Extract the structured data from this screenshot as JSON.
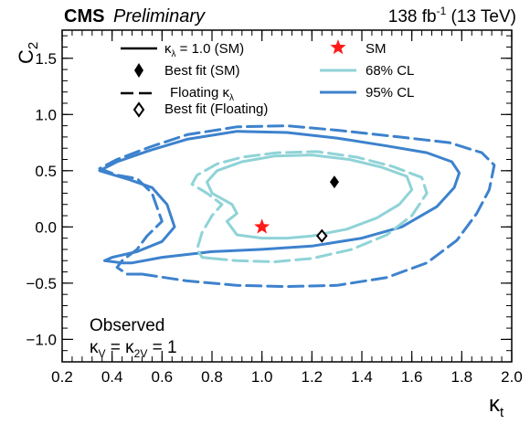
{
  "chart_data": {
    "type": "line",
    "header": {
      "experiment": "CMS",
      "status": "Preliminary",
      "lumi": "138 fb",
      "lumi_exp": "-1",
      "energy": " (13 TeV)"
    },
    "xlabel": {
      "main": "κ",
      "sub": "t"
    },
    "ylabel": {
      "main": "C",
      "sub": "2"
    },
    "xlim": [
      0.2,
      2.0
    ],
    "ylim": [
      -1.2,
      1.75
    ],
    "xticks": [
      0.2,
      0.4,
      0.6,
      0.8,
      1.0,
      1.2,
      1.4,
      1.6,
      1.8,
      2.0
    ],
    "xtick_labels": [
      "0.2",
      "0.4",
      "0.6",
      "0.8",
      "1.0",
      "1.2",
      "1.4",
      "1.6",
      "1.8",
      "2.0"
    ],
    "yticks": [
      -1.0,
      -0.5,
      0.0,
      0.5,
      1.0,
      1.5
    ],
    "ytick_labels": [
      "−1.0",
      "−0.5",
      "0.0",
      "0.5",
      "1.0",
      "1.5"
    ],
    "grid": false,
    "legend": {
      "placement": "top",
      "items": [
        {
          "label_main": "κ",
          "label_sub": "λ",
          "label_rest": " = 1.0 (SM)",
          "kind": "solid"
        },
        {
          "label": "Best fit (SM)",
          "kind": "filled-diamond"
        },
        {
          "label_pre": "Floating κ",
          "label_sub": "λ",
          "kind": "dashed"
        },
        {
          "label": "Best fit (Floating)",
          "kind": "open-diamond"
        },
        {
          "label": "SM",
          "kind": "star"
        },
        {
          "label": "68% CL",
          "kind": "cl68"
        },
        {
          "label": "95% CL",
          "kind": "cl95"
        }
      ]
    },
    "annotation": {
      "line1": "Observed",
      "line2_a": "κ",
      "line2_a_sub": "V",
      "line2_mid": " = κ",
      "line2_b_sub": "2V",
      "line2_end": " = 1"
    },
    "colors": {
      "cl68": "#8fd3d7",
      "cl95": "#3d82cd",
      "star": "#ff1a1a",
      "axis": "#000000"
    },
    "points": [
      {
        "name": "SM",
        "x": 1.0,
        "y": 0.0,
        "marker": "star"
      },
      {
        "name": "Best fit (SM)",
        "x": 1.29,
        "y": 0.4,
        "marker": "filled-diamond"
      },
      {
        "name": "Best fit (Floating)",
        "x": 1.24,
        "y": -0.08,
        "marker": "open-diamond"
      }
    ],
    "series": [
      {
        "cl": "95%",
        "style": "solid",
        "color_key": "cl95",
        "points": [
          [
            0.48,
            -0.32
          ],
          [
            0.6,
            -0.27
          ],
          [
            0.8,
            -0.22
          ],
          [
            1.0,
            -0.2
          ],
          [
            1.2,
            -0.17
          ],
          [
            1.4,
            -0.1
          ],
          [
            1.56,
            0.0
          ],
          [
            1.7,
            0.18
          ],
          [
            1.77,
            0.35
          ],
          [
            1.79,
            0.48
          ],
          [
            1.76,
            0.58
          ],
          [
            1.66,
            0.66
          ],
          [
            1.5,
            0.72
          ],
          [
            1.3,
            0.79
          ],
          [
            1.1,
            0.84
          ],
          [
            0.9,
            0.85
          ],
          [
            0.7,
            0.78
          ],
          [
            0.55,
            0.68
          ],
          [
            0.42,
            0.58
          ],
          [
            0.35,
            0.5
          ],
          [
            0.47,
            0.42
          ],
          [
            0.56,
            0.35
          ],
          [
            0.62,
            0.2
          ],
          [
            0.65,
            0.0
          ],
          [
            0.6,
            -0.13
          ],
          [
            0.5,
            -0.22
          ],
          [
            0.4,
            -0.27
          ],
          [
            0.37,
            -0.3
          ],
          [
            0.44,
            -0.32
          ],
          [
            0.48,
            -0.32
          ]
        ]
      },
      {
        "cl": "95%",
        "style": "dashed",
        "color_key": "cl95",
        "points": [
          [
            0.52,
            -0.42
          ],
          [
            0.7,
            -0.48
          ],
          [
            0.9,
            -0.52
          ],
          [
            1.1,
            -0.53
          ],
          [
            1.3,
            -0.52
          ],
          [
            1.5,
            -0.45
          ],
          [
            1.66,
            -0.32
          ],
          [
            1.78,
            -0.12
          ],
          [
            1.86,
            0.12
          ],
          [
            1.91,
            0.33
          ],
          [
            1.93,
            0.55
          ],
          [
            1.88,
            0.66
          ],
          [
            1.75,
            0.75
          ],
          [
            1.55,
            0.8
          ],
          [
            1.3,
            0.86
          ],
          [
            1.1,
            0.9
          ],
          [
            0.9,
            0.89
          ],
          [
            0.7,
            0.82
          ],
          [
            0.55,
            0.71
          ],
          [
            0.42,
            0.6
          ],
          [
            0.35,
            0.52
          ],
          [
            0.42,
            0.46
          ],
          [
            0.5,
            0.43
          ],
          [
            0.56,
            0.3
          ],
          [
            0.6,
            0.05
          ],
          [
            0.54,
            -0.08
          ],
          [
            0.5,
            -0.2
          ],
          [
            0.44,
            -0.3
          ],
          [
            0.42,
            -0.36
          ],
          [
            0.46,
            -0.42
          ],
          [
            0.52,
            -0.42
          ]
        ]
      },
      {
        "cl": "68%",
        "style": "solid",
        "color_key": "cl68",
        "points": [
          [
            0.9,
            -0.07
          ],
          [
            1.0,
            -0.1
          ],
          [
            1.1,
            -0.1
          ],
          [
            1.2,
            -0.08
          ],
          [
            1.34,
            -0.02
          ],
          [
            1.46,
            0.08
          ],
          [
            1.55,
            0.2
          ],
          [
            1.6,
            0.33
          ],
          [
            1.58,
            0.45
          ],
          [
            1.48,
            0.53
          ],
          [
            1.35,
            0.6
          ],
          [
            1.2,
            0.64
          ],
          [
            1.05,
            0.63
          ],
          [
            0.92,
            0.58
          ],
          [
            0.82,
            0.5
          ],
          [
            0.78,
            0.4
          ],
          [
            0.8,
            0.3
          ],
          [
            0.88,
            0.2
          ],
          [
            0.9,
            0.12
          ],
          [
            0.86,
            0.05
          ],
          [
            0.9,
            -0.07
          ]
        ]
      },
      {
        "cl": "68%",
        "style": "dashed",
        "color_key": "cl68",
        "points": [
          [
            0.8,
            -0.28
          ],
          [
            0.9,
            -0.3
          ],
          [
            1.05,
            -0.31
          ],
          [
            1.2,
            -0.28
          ],
          [
            1.36,
            -0.2
          ],
          [
            1.5,
            -0.07
          ],
          [
            1.6,
            0.1
          ],
          [
            1.66,
            0.3
          ],
          [
            1.64,
            0.44
          ],
          [
            1.52,
            0.54
          ],
          [
            1.38,
            0.62
          ],
          [
            1.22,
            0.67
          ],
          [
            1.06,
            0.66
          ],
          [
            0.92,
            0.62
          ],
          [
            0.82,
            0.56
          ],
          [
            0.74,
            0.46
          ],
          [
            0.72,
            0.38
          ],
          [
            0.78,
            0.3
          ],
          [
            0.84,
            0.2
          ],
          [
            0.8,
            0.1
          ],
          [
            0.76,
            -0.05
          ],
          [
            0.74,
            -0.2
          ],
          [
            0.76,
            -0.27
          ],
          [
            0.8,
            -0.28
          ]
        ]
      }
    ]
  }
}
